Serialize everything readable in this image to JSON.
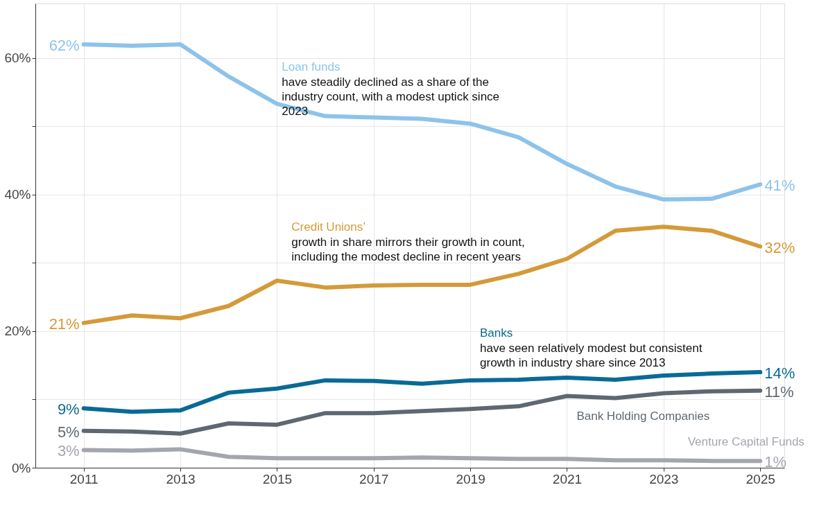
{
  "chart_data": {
    "type": "line",
    "x": [
      2011,
      2012,
      2013,
      2014,
      2015,
      2016,
      2017,
      2018,
      2019,
      2020,
      2021,
      2022,
      2023,
      2024,
      2025
    ],
    "series": [
      {
        "name": "Loan funds",
        "color": "#8dc3ea",
        "values": [
          62.0,
          61.8,
          62.0,
          57.3,
          53.3,
          51.5,
          51.3,
          51.1,
          50.4,
          48.4,
          44.5,
          41.2,
          39.3,
          39.4,
          41.5
        ],
        "value_labels": [
          "62%",
          null,
          null,
          null,
          null,
          null,
          null,
          null,
          null,
          null,
          null,
          null,
          null,
          null,
          "41%"
        ]
      },
      {
        "name": "Credit Unions’",
        "color": "#d49a3a",
        "values": [
          21.2,
          22.3,
          21.9,
          23.7,
          27.4,
          26.4,
          26.7,
          26.8,
          26.8,
          28.4,
          30.6,
          34.7,
          35.3,
          34.7,
          32.4
        ],
        "value_labels": [
          "21%",
          null,
          null,
          null,
          null,
          null,
          null,
          null,
          null,
          null,
          null,
          null,
          null,
          null,
          "32%"
        ]
      },
      {
        "name": "Banks",
        "color": "#0a6a96",
        "values": [
          8.7,
          8.2,
          8.4,
          11.0,
          11.6,
          12.8,
          12.7,
          12.3,
          12.8,
          12.9,
          13.2,
          12.9,
          13.5,
          13.8,
          14.0
        ],
        "value_labels": [
          "9%",
          null,
          null,
          null,
          null,
          null,
          null,
          null,
          null,
          null,
          null,
          null,
          null,
          null,
          "14%"
        ]
      },
      {
        "name": "Bank Holding Companies",
        "color": "#5f6870",
        "values": [
          5.4,
          5.3,
          5.0,
          6.5,
          6.3,
          8.0,
          8.0,
          8.3,
          8.6,
          9.0,
          10.5,
          10.2,
          10.9,
          11.2,
          11.3
        ],
        "value_labels": [
          "5%",
          null,
          null,
          null,
          null,
          null,
          null,
          null,
          null,
          null,
          null,
          null,
          null,
          null,
          "11%"
        ]
      },
      {
        "name": "Venture Capital Funds",
        "color": "#a4a6ae",
        "values": [
          2.6,
          2.5,
          2.7,
          1.6,
          1.4,
          1.4,
          1.4,
          1.5,
          1.4,
          1.3,
          1.3,
          1.1,
          1.1,
          1.0,
          1.0
        ],
        "value_labels": [
          "3%",
          null,
          null,
          null,
          null,
          null,
          null,
          null,
          null,
          null,
          null,
          null,
          null,
          null,
          "1%"
        ]
      }
    ],
    "annotations": [
      "have steadily declined as a share of the industry count, with a modest uptick since 2023",
      "growth in share mirrors their growth in count, including the modest decline in recent years",
      "have seen relatively modest but consistent growth in industry share since 2013"
    ],
    "xlim": [
      2010,
      2025.5
    ],
    "xticks": [
      2011,
      2013,
      2015,
      2017,
      2019,
      2021,
      2023,
      2025
    ],
    "ylim": [
      0,
      68
    ],
    "yticks": [
      {
        "value": 0,
        "label": "0%"
      },
      {
        "value": 10,
        "label": null
      },
      {
        "value": 20,
        "label": "20%"
      },
      {
        "value": 30,
        "label": null
      },
      {
        "value": 40,
        "label": "40%"
      },
      {
        "value": 50,
        "label": null
      },
      {
        "value": 60,
        "label": "60%"
      }
    ],
    "grid": true,
    "line_style": "solid",
    "marker": "none"
  }
}
